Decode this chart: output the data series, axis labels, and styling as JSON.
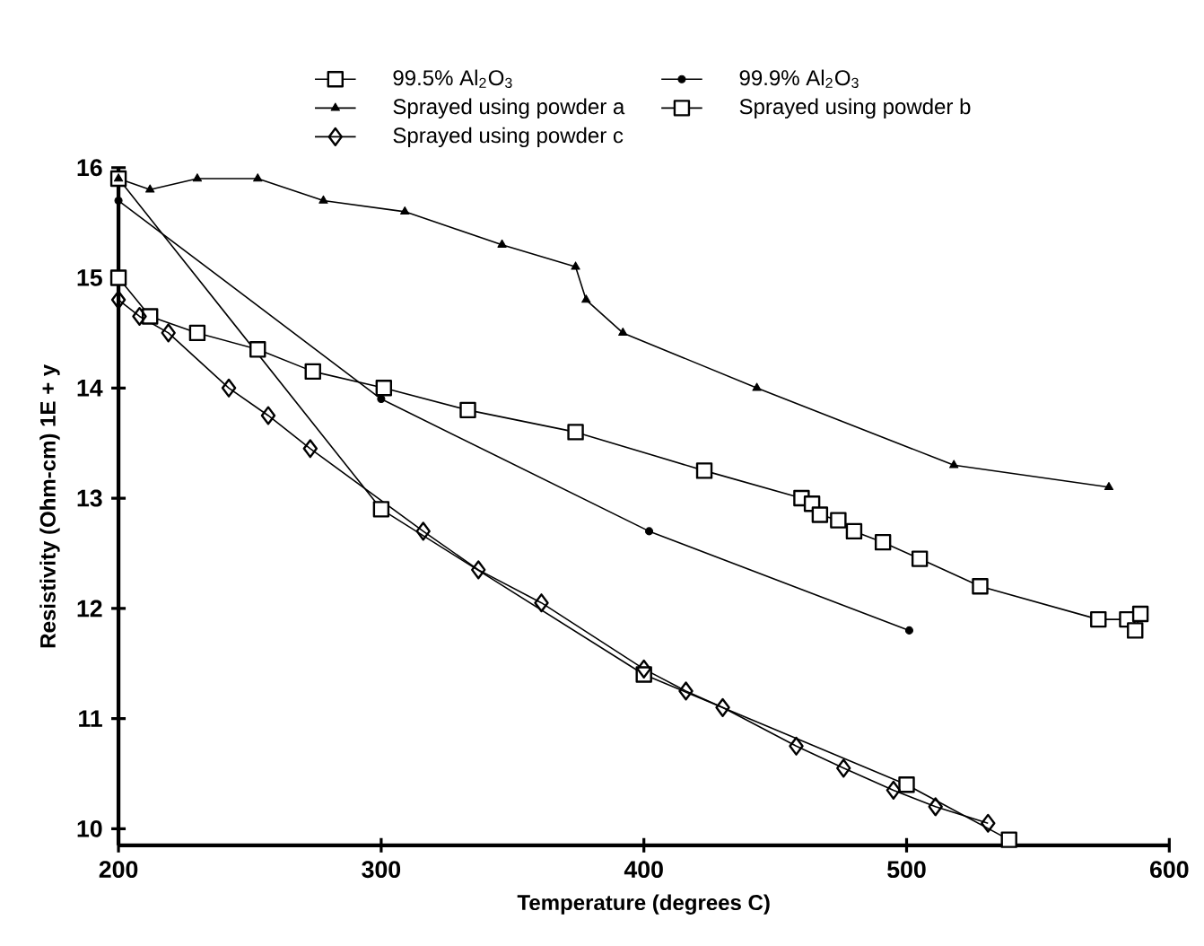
{
  "chart_data": {
    "type": "line",
    "xlabel": "Temperature (degrees C)",
    "ylabel": "Resistivity (Ohm-cm) 1E + y",
    "xlim": [
      200,
      600
    ],
    "xticks": [
      200,
      300,
      400,
      500,
      600
    ],
    "ylim": [
      9.85,
      16
    ],
    "yticks": [
      10,
      11,
      12,
      13,
      14,
      15,
      16
    ],
    "legend": "top",
    "grid": false,
    "line_style": "solid",
    "series": [
      {
        "name": "99.5% Al$_{2}$O$_{3}$",
        "color": "#000000",
        "marker": "square",
        "x": [
          200,
          300,
          400,
          500,
          539
        ],
        "values": [
          15.9,
          12.9,
          11.4,
          10.4,
          9.9
        ]
      },
      {
        "name": "99.9% Al$_{2}$O$_{3}$",
        "color": "#000000",
        "marker": "circle",
        "x": [
          200,
          300,
          402,
          501
        ],
        "values": [
          15.7,
          13.9,
          12.7,
          11.8
        ]
      },
      {
        "name": "Sprayed using powder a",
        "color": "#000000",
        "marker": "triangle",
        "x": [
          200,
          212,
          230,
          253,
          278,
          309,
          346,
          374,
          378,
          392,
          443,
          518,
          577
        ],
        "values": [
          15.9,
          15.8,
          15.9,
          15.9,
          15.7,
          15.6,
          15.3,
          15.1,
          14.8,
          14.5,
          14.0,
          13.3,
          13.1
        ]
      },
      {
        "name": "Sprayed using powder b",
        "color": "#000000",
        "marker": "square",
        "x": [
          200,
          212,
          230,
          253,
          274,
          301,
          333,
          374,
          423,
          460,
          464,
          467,
          474,
          480,
          491,
          505,
          528,
          573,
          584,
          589,
          587
        ],
        "values": [
          15.0,
          14.65,
          14.5,
          14.35,
          14.15,
          14.0,
          13.8,
          13.6,
          13.25,
          13.0,
          12.95,
          12.85,
          12.8,
          12.7,
          12.6,
          12.45,
          12.2,
          11.9,
          11.9,
          11.95,
          11.8
        ]
      },
      {
        "name": "Sprayed using powder c",
        "color": "#000000",
        "marker": "diamond",
        "x": [
          200,
          208,
          219,
          242,
          257,
          273,
          316,
          337,
          361,
          400,
          416,
          430,
          458,
          476,
          495,
          511,
          531
        ],
        "values": [
          14.8,
          14.65,
          14.5,
          14.0,
          13.75,
          13.45,
          12.7,
          12.35,
          12.05,
          11.45,
          11.25,
          11.1,
          10.75,
          10.55,
          10.35,
          10.2,
          10.05
        ]
      }
    ]
  }
}
